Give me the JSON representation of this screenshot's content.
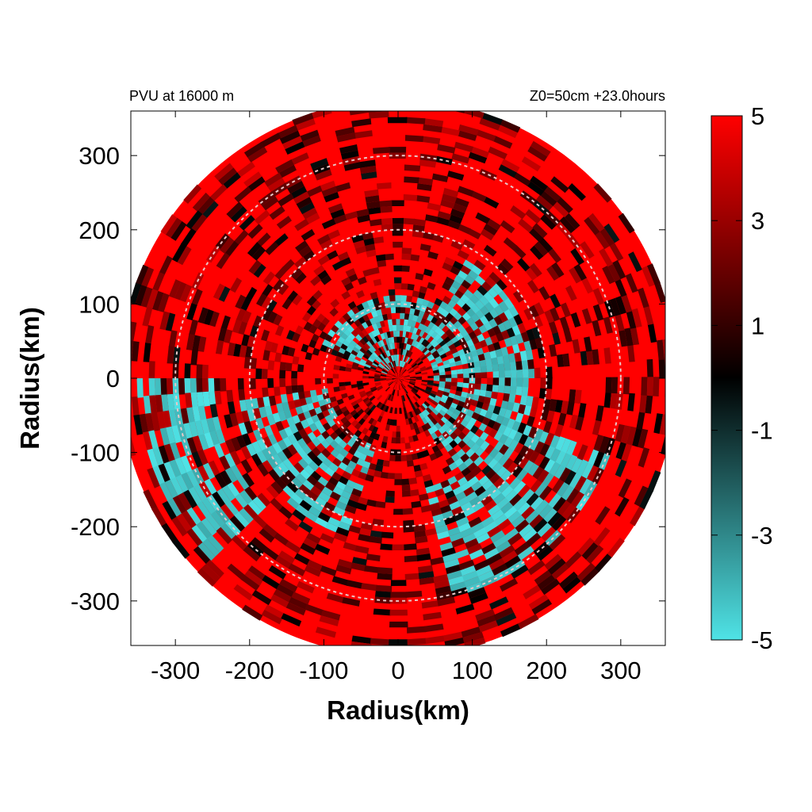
{
  "chart_data": {
    "type": "heatmap",
    "title_left": "PVU at 16000 m",
    "title_right": "Z0=50cm  +23.0hours",
    "xlabel": "Radius(km)",
    "ylabel": "Radius(km)",
    "xlim": [
      -360,
      360
    ],
    "ylim": [
      -360,
      360
    ],
    "x_ticks": [
      -300,
      -200,
      -100,
      0,
      100,
      200,
      300
    ],
    "y_ticks": [
      300,
      200,
      100,
      0,
      -100,
      -200,
      -300
    ],
    "x_tick_labels": [
      "-300",
      "-200",
      "-100",
      "0",
      "100",
      "200",
      "300"
    ],
    "y_tick_labels": [
      "300",
      "200",
      "100",
      "0",
      "-100",
      "-200",
      "-300"
    ],
    "domain_radius_km": 375,
    "reference_circles_km": [
      100,
      200,
      300
    ],
    "colorbar": {
      "min": -5,
      "max": 5,
      "ticks": [
        5,
        3,
        1,
        -1,
        -3,
        -5
      ],
      "tick_labels": [
        "5",
        "3",
        "1",
        "-1",
        "-3",
        "-5"
      ],
      "colors": {
        "min": "#4fe3e6",
        "mid": "#000000",
        "max": "#ff0000"
      }
    },
    "field_description_values": {
      "dominant_value": 5,
      "negative_band_arcs": [
        {
          "radius_range_km": [
            50,
            180
          ],
          "angle_range_deg": [
            -60,
            60
          ],
          "value": -5
        },
        {
          "radius_range_km": [
            150,
            300
          ],
          "angle_range_deg": [
            -75,
            -20
          ],
          "value": -5
        },
        {
          "radius_range_km": [
            250,
            350
          ],
          "angle_range_deg": [
            180,
            225
          ],
          "value": -5
        },
        {
          "radius_range_km": [
            20,
            110
          ],
          "angle_range_deg": [
            60,
            160
          ],
          "value": -5
        },
        {
          "radius_range_km": [
            100,
            220
          ],
          "angle_range_deg": [
            190,
            250
          ],
          "value": -4
        }
      ]
    }
  }
}
